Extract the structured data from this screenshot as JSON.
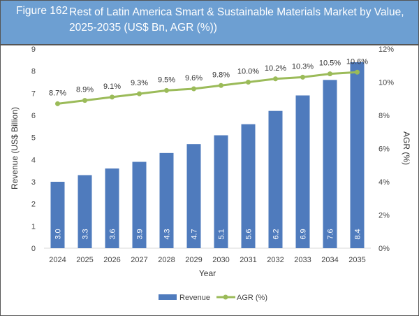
{
  "header": {
    "figure": "Figure 162",
    "title": "Rest of Latin America Smart & Sustainable Materials Market by Value, 2025-2035 (US$ Bn, AGR (%))"
  },
  "chart_data": {
    "type": "bar+line",
    "categories": [
      "2024",
      "2025",
      "2026",
      "2027",
      "2028",
      "2029",
      "2030",
      "2031",
      "2032",
      "2033",
      "2034",
      "2035"
    ],
    "series": [
      {
        "name": "Revenue",
        "type": "bar",
        "axis": "left",
        "values": [
          3.0,
          3.3,
          3.6,
          3.9,
          4.3,
          4.7,
          5.1,
          5.6,
          6.2,
          6.9,
          7.6,
          8.4
        ],
        "labels": [
          "3.0",
          "3.3",
          "3.6",
          "3.9",
          "4.3",
          "4.7",
          "5.1",
          "5.6",
          "6.2",
          "6.9",
          "7.6",
          "8.4"
        ],
        "color": "#4f7bbd"
      },
      {
        "name": "AGR (%)",
        "type": "line",
        "axis": "right",
        "values": [
          8.7,
          8.9,
          9.1,
          9.3,
          9.5,
          9.6,
          9.8,
          10.0,
          10.2,
          10.3,
          10.5,
          10.6
        ],
        "labels": [
          "8.7%",
          "8.9%",
          "9.1%",
          "9.3%",
          "9.5%",
          "9.6%",
          "9.8%",
          "10.0%",
          "10.2%",
          "10.3%",
          "10.5%",
          "10.6%"
        ],
        "color": "#9bbb59"
      }
    ],
    "xlabel": "Year",
    "ylabel": "Revenue (US$ Billion)",
    "y2label": "AGR (%)",
    "ylim": [
      0,
      9
    ],
    "yticks": [
      "0",
      "1",
      "2",
      "3",
      "4",
      "5",
      "6",
      "7",
      "8",
      "9"
    ],
    "y2lim": [
      0,
      12
    ],
    "y2ticks": [
      "0%",
      "2%",
      "4%",
      "6%",
      "8%",
      "10%",
      "12%"
    ],
    "grid": false,
    "legend": "bottom"
  }
}
